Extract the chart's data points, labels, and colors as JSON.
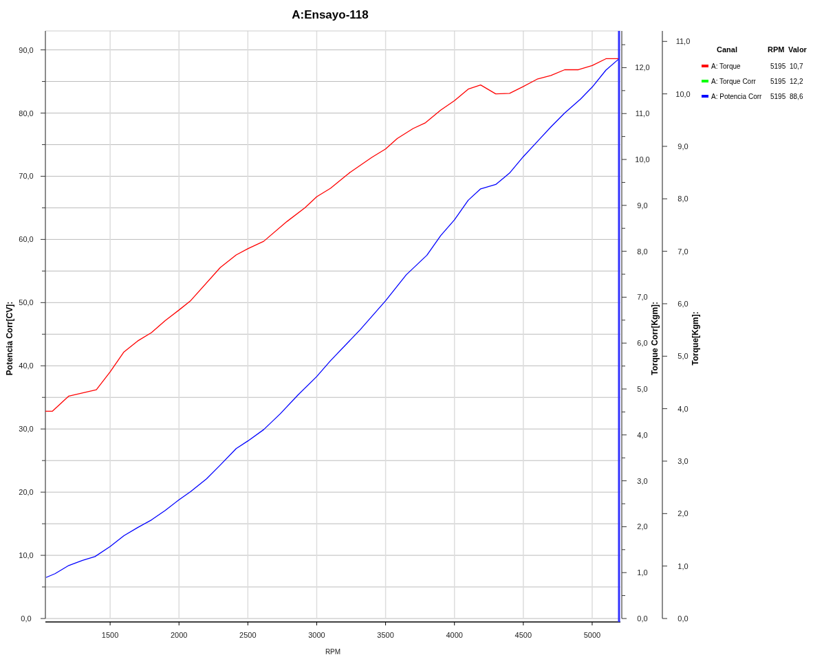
{
  "chart_data": {
    "type": "line",
    "title": "A:Ensayo-118",
    "xlabel": "RPM",
    "ylabel": "Potencia Corr[CV]:",
    "y2label": "Torque Corr[Kgm]:",
    "y3label": "Torque[Kgm]:",
    "legend_title": "Canal",
    "legend": "top right",
    "grid": true,
    "marker": "none",
    "line_style": "solid",
    "annotations": [
      "RPM",
      "Valor",
      "5195",
      "10,7",
      "5195",
      "12,2",
      "5195",
      "88,6"
    ],
    "xlim": [
      1030,
      5205
    ],
    "xticks": [
      1500,
      2000,
      2500,
      3000,
      3500,
      4000,
      4500,
      5000
    ],
    "ylim": [
      0,
      93
    ],
    "yticks": [
      {
        "value": 0,
        "label": "0,0"
      },
      {
        "value": 5,
        "label": null
      },
      {
        "value": 10,
        "label": "10,0"
      },
      {
        "value": 15,
        "label": null
      },
      {
        "value": 20,
        "label": "20,0"
      },
      {
        "value": 25,
        "label": null
      },
      {
        "value": 30,
        "label": "30,0"
      },
      {
        "value": 35,
        "label": null
      },
      {
        "value": 40,
        "label": "40,0"
      },
      {
        "value": 45,
        "label": null
      },
      {
        "value": 50,
        "label": "50,0"
      },
      {
        "value": 55,
        "label": null
      },
      {
        "value": 60,
        "label": "60,0"
      },
      {
        "value": 65,
        "label": null
      },
      {
        "value": 70,
        "label": "70,0"
      },
      {
        "value": 75,
        "label": null
      },
      {
        "value": 80,
        "label": "80,0"
      },
      {
        "value": 85,
        "label": null
      },
      {
        "value": 90,
        "label": "90,0"
      }
    ],
    "y2lim": [
      0,
      12.8
    ],
    "y2ticks": [
      {
        "value": 0,
        "label": "0,0"
      },
      {
        "value": 0.5,
        "label": null
      },
      {
        "value": 1,
        "label": "1,0"
      },
      {
        "value": 1.5,
        "label": null
      },
      {
        "value": 2,
        "label": "2,0"
      },
      {
        "value": 2.5,
        "label": null
      },
      {
        "value": 3,
        "label": "3,0"
      },
      {
        "value": 3.5,
        "label": null
      },
      {
        "value": 4,
        "label": "4,0"
      },
      {
        "value": 4.5,
        "label": null
      },
      {
        "value": 5,
        "label": "5,0"
      },
      {
        "value": 5.5,
        "label": null
      },
      {
        "value": 6,
        "label": "6,0"
      },
      {
        "value": 6.5,
        "label": null
      },
      {
        "value": 7,
        "label": "7,0"
      },
      {
        "value": 7.5,
        "label": null
      },
      {
        "value": 8,
        "label": "8,0"
      },
      {
        "value": 8.5,
        "label": null
      },
      {
        "value": 9,
        "label": "9,0"
      },
      {
        "value": 9.5,
        "label": null
      },
      {
        "value": 10,
        "label": "10,0"
      },
      {
        "value": 10.5,
        "label": null
      },
      {
        "value": 11,
        "label": "11,0"
      },
      {
        "value": 11.5,
        "label": null
      },
      {
        "value": 12,
        "label": "12,0"
      },
      {
        "value": 12.5,
        "label": null
      }
    ],
    "y3lim": [
      0,
      11.2
    ],
    "y3ticks": [
      {
        "value": 0,
        "label": "0,0"
      },
      {
        "value": 1,
        "label": "1,0"
      },
      {
        "value": 2,
        "label": "2,0"
      },
      {
        "value": 3,
        "label": "3,0"
      },
      {
        "value": 4,
        "label": "4,0"
      },
      {
        "value": 5,
        "label": "5,0"
      },
      {
        "value": 6,
        "label": "6,0"
      },
      {
        "value": 7,
        "label": "7,0"
      },
      {
        "value": 8,
        "label": "8,0"
      },
      {
        "value": 9,
        "label": "9,0"
      },
      {
        "value": 10,
        "label": "10,0"
      },
      {
        "value": 11,
        "label": "11,0"
      }
    ],
    "ref_lines": [
      {
        "axis": "x",
        "value": 5195,
        "color": "#3333ff"
      }
    ],
    "series": [
      {
        "name": "A: Torque",
        "color": "#ff0000",
        "axis": "y3",
        "x": [
          1030,
          1080,
          1200,
          1400,
          1500,
          1600,
          1700,
          1800,
          1900,
          2000,
          2085,
          2300,
          2415,
          2500,
          2615,
          2785,
          2915,
          3000,
          3100,
          3235,
          3400,
          3500,
          3585,
          3700,
          3790,
          3900,
          4000,
          4100,
          4190,
          4300,
          4400,
          4500,
          4600,
          4700,
          4800,
          4900,
          5000,
          5100,
          5190
        ],
        "values": [
          3.95,
          3.95,
          4.24,
          4.36,
          4.7,
          5.08,
          5.29,
          5.45,
          5.68,
          5.88,
          6.06,
          6.69,
          6.93,
          7.05,
          7.19,
          7.57,
          7.83,
          8.04,
          8.2,
          8.49,
          8.79,
          8.95,
          9.15,
          9.34,
          9.45,
          9.69,
          9.87,
          10.09,
          10.17,
          10.0,
          10.01,
          10.14,
          10.28,
          10.35,
          10.46,
          10.46,
          10.54,
          10.67,
          10.67
        ]
      },
      {
        "name": "A: Torque Corr",
        "color": "#00ff00",
        "axis": "y2"
      },
      {
        "name": "A: Potencia Corr",
        "color": "#0000ff",
        "axis": "y",
        "x": [
          1035,
          1100,
          1200,
          1300,
          1390,
          1500,
          1600,
          1700,
          1800,
          1900,
          2000,
          2085,
          2200,
          2300,
          2415,
          2500,
          2615,
          2735,
          2865,
          3000,
          3100,
          3315,
          3500,
          3650,
          3800,
          3900,
          4000,
          4100,
          4190,
          4300,
          4400,
          4500,
          4615,
          4700,
          4800,
          4915,
          5000,
          5100,
          5190
        ],
        "values": [
          6.5,
          7.1,
          8.4,
          9.2,
          9.8,
          11.4,
          13.1,
          14.4,
          15.6,
          17.1,
          18.8,
          20.1,
          22.1,
          24.3,
          26.9,
          28.1,
          29.9,
          32.4,
          35.4,
          38.3,
          40.8,
          45.7,
          50.3,
          54.4,
          57.5,
          60.6,
          63.1,
          66.2,
          68.0,
          68.7,
          70.5,
          73.1,
          75.8,
          77.8,
          80.0,
          82.2,
          84.1,
          86.8,
          88.5
        ]
      }
    ]
  }
}
